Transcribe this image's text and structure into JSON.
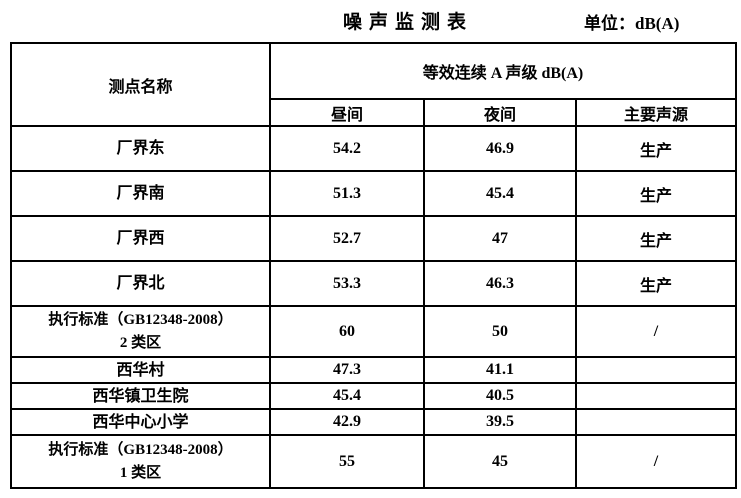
{
  "page": {
    "title": "噪声监测表",
    "unit_label": "单位：dB(A)"
  },
  "table": {
    "header": {
      "measuring_point": "测点名称",
      "leq_span": "等效连续 A 声级 dB(A)",
      "sub": [
        "昼间",
        "夜间",
        "主要声源"
      ]
    },
    "rows": [
      {
        "name": "厂界东",
        "day": "54.2",
        "night": "46.9",
        "source": "生产"
      },
      {
        "name": "厂界南",
        "day": "51.3",
        "night": "45.4",
        "source": "生产"
      },
      {
        "name": "厂界西",
        "day": "52.7",
        "night": "47",
        "source": "生产"
      },
      {
        "name": "厂界北",
        "day": "53.3",
        "night": "46.3",
        "source": "生产"
      },
      {
        "name": "执行标准（GB12348-2008）\n2 类区",
        "day": "60",
        "night": "50",
        "source": "/"
      },
      {
        "name": "西华村",
        "day": "47.3",
        "night": "41.1",
        "source": ""
      },
      {
        "name": "西华镇卫生院",
        "day": "45.4",
        "night": "40.5",
        "source": ""
      },
      {
        "name": "西华中心小学",
        "day": "42.9",
        "night": "39.5",
        "source": ""
      },
      {
        "name": "执行标准（GB12348-2008）\n1 类区",
        "day": "55",
        "night": "45",
        "source": "/"
      }
    ]
  }
}
